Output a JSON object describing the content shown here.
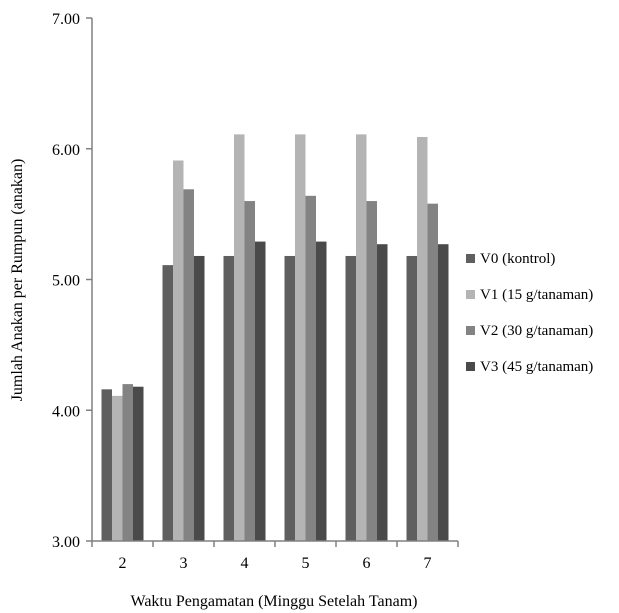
{
  "chart_data": {
    "type": "bar",
    "xlabel": "Waktu Pengamatan (Minggu Setelah Tanam)",
    "ylabel": "Jumlah Anakan per Rumpun (anakan)",
    "ylim": [
      3.0,
      7.0
    ],
    "yticks": [
      "3.00",
      "4.00",
      "5.00",
      "6.00",
      "7.00"
    ],
    "categories": [
      "2",
      "3",
      "4",
      "5",
      "6",
      "7"
    ],
    "grid": false,
    "legend_position": "right",
    "series": [
      {
        "name": "V0 (kontrol)",
        "color": "#5f5f5f",
        "values": [
          4.16,
          5.11,
          5.18,
          5.18,
          5.18,
          5.18
        ]
      },
      {
        "name": "V1 (15 g/tanaman)",
        "color": "#b4b4b4",
        "values": [
          4.11,
          5.91,
          6.11,
          6.11,
          6.11,
          6.09
        ]
      },
      {
        "name": "V2 (30 g/tanaman)",
        "color": "#838383",
        "values": [
          4.2,
          5.69,
          5.6,
          5.64,
          5.6,
          5.58
        ]
      },
      {
        "name": "V3 (45 g/tanaman)",
        "color": "#4a4a4a",
        "values": [
          4.18,
          5.18,
          5.29,
          5.29,
          5.27,
          5.27
        ]
      }
    ]
  }
}
